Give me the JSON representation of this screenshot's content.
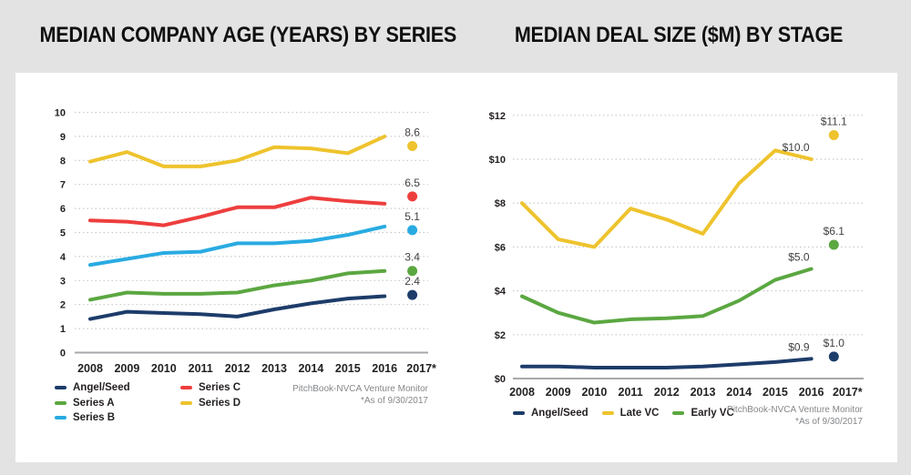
{
  "page": {
    "background_color": "#e3e3e3",
    "panel_color": "#ffffff"
  },
  "chart_data": [
    {
      "type": "line",
      "title": "MEDIAN COMPANY AGE (YEARS) BY SERIES",
      "categories": [
        "2008",
        "2009",
        "2010",
        "2011",
        "2012",
        "2013",
        "2014",
        "2015",
        "2016"
      ],
      "projected_category": "2017*",
      "ylim": [
        0,
        10
      ],
      "y_tick_step": 1,
      "y_tick_labels": [
        "0",
        "1",
        "2",
        "3",
        "4",
        "5",
        "6",
        "7",
        "8",
        "9",
        "10"
      ],
      "grid": "dotted-horizontal",
      "legend_position": "bottom-left-two-columns",
      "series": [
        {
          "name": "Angel/Seed",
          "color": "#1d3c6a",
          "values": [
            1.4,
            1.7,
            1.65,
            1.6,
            1.5,
            1.8,
            2.05,
            2.25,
            2.35
          ],
          "projected_value": 2.4,
          "projected_label": "2.4"
        },
        {
          "name": "Series A",
          "color": "#5ba741",
          "values": [
            2.2,
            2.5,
            2.45,
            2.45,
            2.5,
            2.8,
            3.0,
            3.3,
            3.4
          ],
          "projected_value": 3.4,
          "projected_label": "3.4"
        },
        {
          "name": "Series B",
          "color": "#29abe2",
          "values": [
            3.65,
            3.9,
            4.15,
            4.2,
            4.55,
            4.55,
            4.65,
            4.9,
            5.25
          ],
          "projected_value": 5.1,
          "projected_label": "5.1"
        },
        {
          "name": "Series C",
          "color": "#ee3e3e",
          "values": [
            5.5,
            5.45,
            5.3,
            5.65,
            6.05,
            6.05,
            6.45,
            6.3,
            6.2
          ],
          "projected_value": 6.5,
          "projected_label": "6.5"
        },
        {
          "name": "Series D",
          "color": "#eec32d",
          "values": [
            7.95,
            8.35,
            7.75,
            7.75,
            8.0,
            8.55,
            8.5,
            8.3,
            9.0
          ],
          "projected_value": 8.6,
          "projected_label": "8.6"
        }
      ],
      "source": "PitchBook-NVCA Venture Monitor",
      "as_of": "*As of 9/30/2017"
    },
    {
      "type": "line",
      "title": "MEDIAN DEAL SIZE ($M) BY STAGE",
      "categories": [
        "2008",
        "2009",
        "2010",
        "2011",
        "2012",
        "2013",
        "2014",
        "2015",
        "2016"
      ],
      "projected_category": "2017*",
      "ylim": [
        0,
        12
      ],
      "y_tick_step": 2,
      "y_tick_labels": [
        "$0",
        "$2",
        "$4",
        "$6",
        "$8",
        "$10",
        "$12"
      ],
      "grid": "dotted-horizontal",
      "legend_position": "bottom-left-row",
      "series": [
        {
          "name": "Angel/Seed",
          "color": "#1d3c6a",
          "values": [
            0.55,
            0.55,
            0.5,
            0.5,
            0.5,
            0.55,
            0.65,
            0.75,
            0.9
          ],
          "last_value_label": "$0.9",
          "projected_value": 1.0,
          "projected_label": "$1.0"
        },
        {
          "name": "Late VC",
          "color": "#eec32d",
          "values": [
            8.0,
            6.35,
            6.0,
            7.75,
            7.25,
            6.6,
            8.9,
            10.4,
            10.0
          ],
          "last_value_label": "$10.0",
          "projected_value": 11.1,
          "projected_label": "$11.1"
        },
        {
          "name": "Early VC",
          "color": "#5ba741",
          "values": [
            3.75,
            3.0,
            2.55,
            2.7,
            2.75,
            2.85,
            3.55,
            4.5,
            5.0
          ],
          "last_value_label": "$5.0",
          "projected_value": 6.1,
          "projected_label": "$6.1"
        }
      ],
      "source": "PitchBook-NVCA Venture Monitor",
      "as_of": "*As of 9/30/2017"
    }
  ]
}
